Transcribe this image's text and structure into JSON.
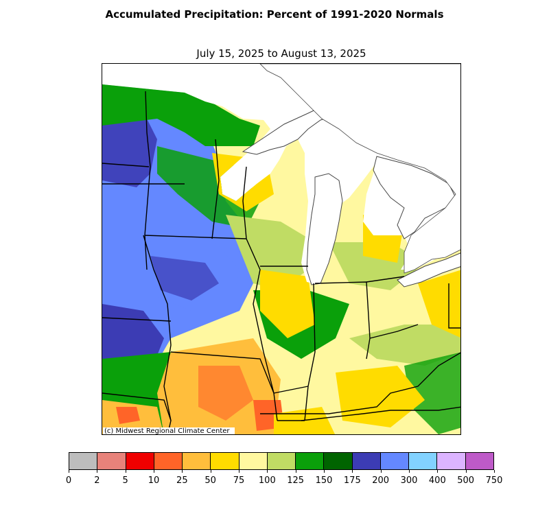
{
  "title": "Accumulated Precipitation: Percent of 1991-2020 Normals",
  "subtitle": "July 15, 2025 to August 13, 2025",
  "credit": "(c) Midwest Regional Climate Center",
  "legend": {
    "ticks": [
      "0",
      "2",
      "5",
      "10",
      "25",
      "50",
      "75",
      "100",
      "125",
      "150",
      "175",
      "200",
      "300",
      "400",
      "500",
      "750"
    ],
    "colors": [
      "#bdbdbd",
      "#e8827a",
      "#f00000",
      "#ff6428",
      "#ffbe3c",
      "#ffdc00",
      "#fff8a0",
      "#c0dc64",
      "#0aa00a",
      "#006400",
      "#3c3cb4",
      "#6488ff",
      "#82d2ff",
      "#dcb4ff",
      "#be5ac8"
    ]
  },
  "map": {
    "region": "Midwest",
    "water_color": "#ffffff",
    "boundary_color": "#000000"
  }
}
